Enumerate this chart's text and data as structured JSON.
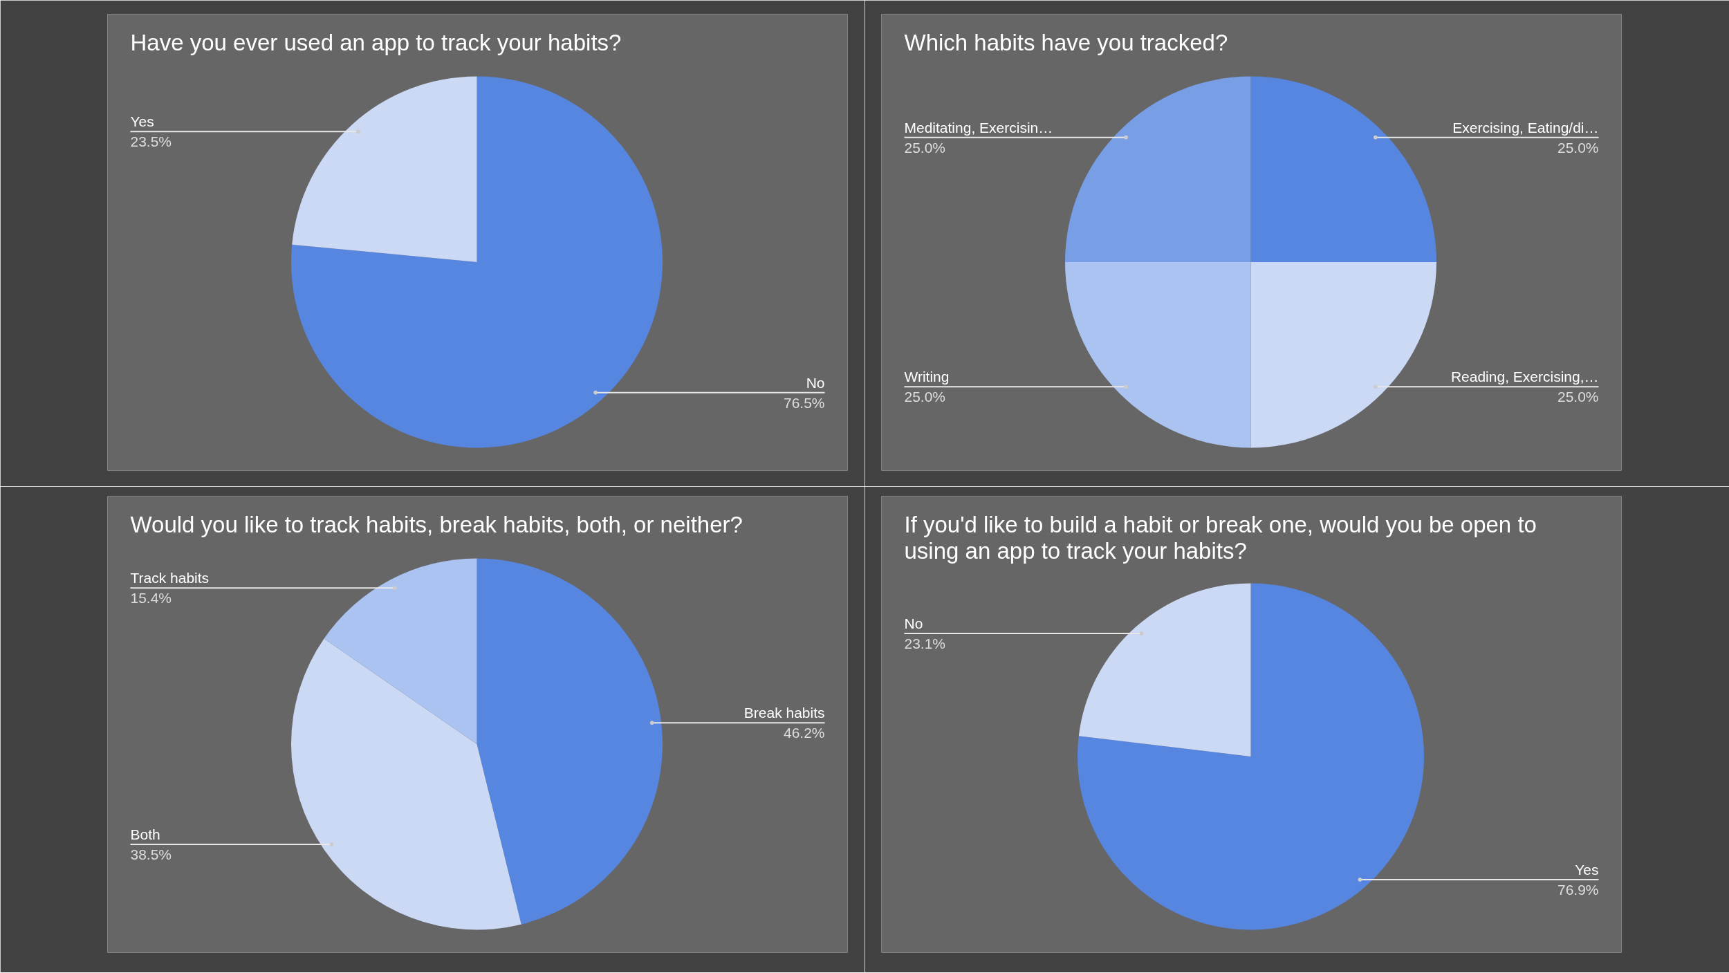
{
  "chart_data": [
    {
      "type": "pie",
      "title": "Have you ever used an app to track your habits?",
      "categories": [
        "No",
        "Yes"
      ],
      "values": [
        76.5,
        23.5
      ],
      "colors": [
        "#5786e0",
        "#cbd9f5"
      ],
      "value_labels": [
        "76.5%",
        "23.5%"
      ]
    },
    {
      "type": "pie",
      "title": "Which habits have you tracked?",
      "categories": [
        "Exercising, Eating/di…",
        "Reading, Exercising,…",
        "Writing",
        "Meditating, Exercisin…"
      ],
      "values": [
        25.0,
        25.0,
        25.0,
        25.0
      ],
      "colors": [
        "#5786e0",
        "#cbd9f5",
        "#abc3f0",
        "#789fe6"
      ],
      "value_labels": [
        "25.0%",
        "25.0%",
        "25.0%",
        "25.0%"
      ]
    },
    {
      "type": "pie",
      "title": "Would you like to track habits, break habits, both, or neither?",
      "categories": [
        "Break habits",
        "Both",
        "Track habits"
      ],
      "values": [
        46.2,
        38.5,
        15.4
      ],
      "colors": [
        "#5786e0",
        "#cbd9f5",
        "#abc3f0"
      ],
      "value_labels": [
        "46.2%",
        "38.5%",
        "15.4%"
      ]
    },
    {
      "type": "pie",
      "title": "If you'd like to build a habit or break one, would you be open to using an app to track your habits?",
      "categories": [
        "Yes",
        "No"
      ],
      "values": [
        76.9,
        23.1
      ],
      "colors": [
        "#5786e0",
        "#cbd9f5"
      ],
      "value_labels": [
        "76.9%",
        "23.1%"
      ]
    }
  ]
}
